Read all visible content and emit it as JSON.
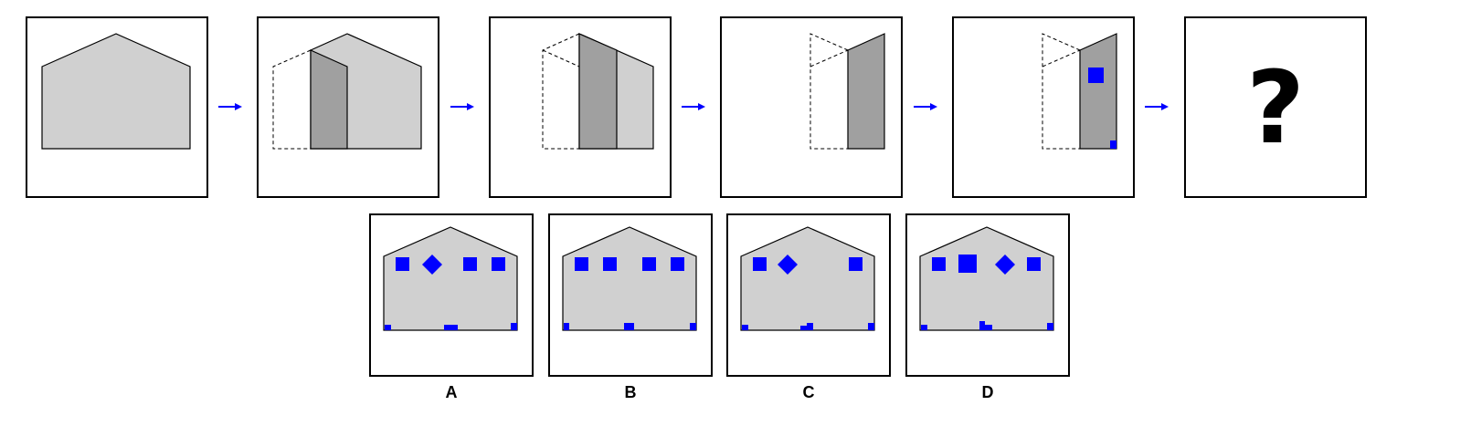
{
  "puzzle": {
    "question_mark": "?",
    "options": [
      {
        "label": "A"
      },
      {
        "label": "B"
      },
      {
        "label": "C"
      },
      {
        "label": "D"
      }
    ]
  },
  "colors": {
    "fill_light": "#d0d0d0",
    "fill_dark": "#a0a0a0",
    "marker": "#0000ff",
    "arrow": "#0000ff"
  }
}
